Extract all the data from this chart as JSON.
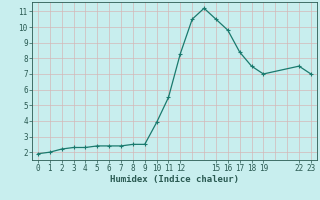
{
  "xlabel": "Humidex (Indice chaleur)",
  "x": [
    0,
    1,
    2,
    3,
    4,
    5,
    6,
    7,
    8,
    9,
    10,
    11,
    12,
    13,
    14,
    15,
    16,
    17,
    18,
    19,
    22,
    23
  ],
  "y": [
    1.9,
    2.0,
    2.2,
    2.3,
    2.3,
    2.4,
    2.4,
    2.4,
    2.5,
    2.5,
    3.9,
    5.5,
    8.3,
    10.5,
    11.2,
    10.5,
    9.8,
    8.4,
    7.5,
    7.0,
    7.5,
    7.0
  ],
  "line_color": "#1a7a6e",
  "marker": "+",
  "bg_color": "#c8eeee",
  "grid_color": "#d4b8b8",
  "axis_color": "#2a5a52",
  "ylim": [
    1.5,
    11.6
  ],
  "xlim": [
    -0.5,
    23.5
  ],
  "yticks": [
    2,
    3,
    4,
    5,
    6,
    7,
    8,
    9,
    10,
    11
  ],
  "xtick_positions": [
    0,
    1,
    2,
    3,
    4,
    5,
    6,
    7,
    8,
    9,
    10,
    11,
    12,
    15,
    16,
    17,
    18,
    19,
    22,
    23
  ],
  "xtick_labels": [
    "0",
    "1",
    "2",
    "3",
    "4",
    "5",
    "6",
    "7",
    "8",
    "9",
    "10",
    "11",
    "12",
    "15",
    "16",
    "17",
    "18",
    "19",
    "22",
    "23"
  ]
}
